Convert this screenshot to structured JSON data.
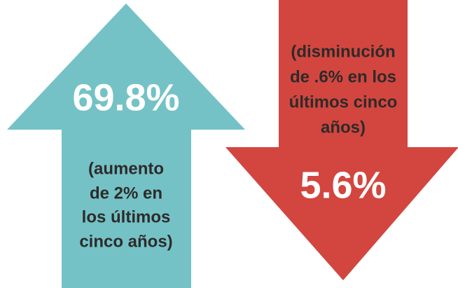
{
  "arrows": [
    {
      "direction": "up",
      "color": "#74c2c6",
      "value": "69.8%",
      "note": [
        "(aumento",
        "de 2% en",
        "los últimos",
        "cinco años)"
      ]
    },
    {
      "direction": "down",
      "color": "#d2463f",
      "value": "5.6%",
      "note": [
        "(disminución",
        "de .6% en los",
        "últimos cinco",
        "años)"
      ]
    }
  ]
}
